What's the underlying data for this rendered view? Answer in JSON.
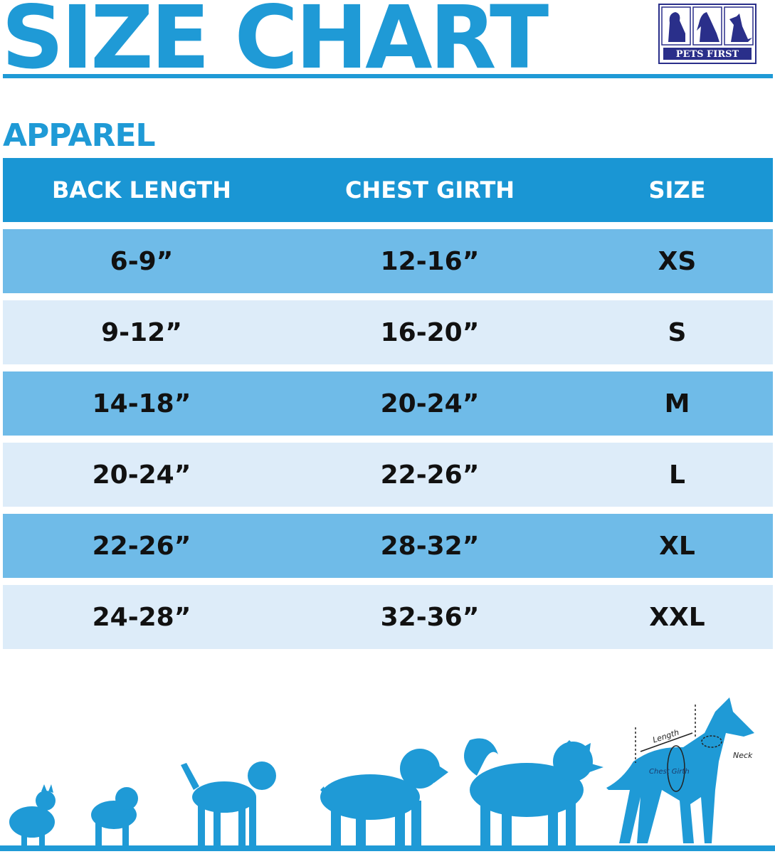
{
  "title": "SIZE CHART",
  "logo": {
    "text": "PETS FIRST"
  },
  "section": "APPAREL",
  "table": {
    "headers": [
      "BACK LENGTH",
      "CHEST GIRTH",
      "SIZE"
    ],
    "rows": [
      [
        "6-9”",
        "12-16”",
        "XS"
      ],
      [
        "9-12”",
        "16-20”",
        "S"
      ],
      [
        "14-18”",
        "20-24”",
        "M"
      ],
      [
        "20-24”",
        "22-26”",
        "L"
      ],
      [
        "22-26”",
        "28-32”",
        "XL"
      ],
      [
        "24-28”",
        "32-36”",
        "XXL"
      ]
    ]
  },
  "diagram": {
    "length": "Length",
    "chest": "Chest Girth",
    "neck": "Neck"
  },
  "colors": {
    "brand": "#1f9ad6",
    "header": "#1a96d4",
    "row_dark": "#6fbbe8",
    "row_light": "#ddecf9",
    "logo": "#2a2f8a"
  }
}
